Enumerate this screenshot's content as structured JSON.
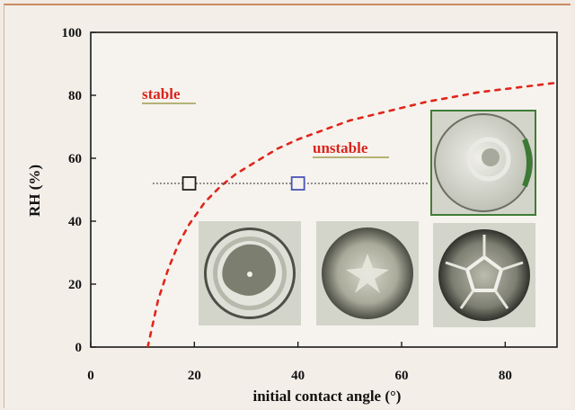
{
  "chart_data": {
    "type": "scatter",
    "title": "",
    "xlabel": "initial contact angle (°)",
    "ylabel": "RH (%)",
    "xlim": [
      0,
      90
    ],
    "ylim": [
      0,
      100
    ],
    "x_ticks": [
      "0",
      "20",
      "40",
      "60",
      "80"
    ],
    "y_ticks": [
      "0",
      "20",
      "40",
      "60",
      "80",
      "100"
    ],
    "grid": false,
    "legend": "none",
    "annotations": {
      "stable": "stable",
      "unstable": "unstable"
    },
    "boundary_curve": {
      "color": "#e0261c",
      "x": [
        11,
        13,
        15,
        17,
        19,
        22,
        25,
        28,
        32,
        36,
        40,
        45,
        50,
        55,
        60,
        65,
        70,
        75,
        80,
        85,
        90
      ],
      "y": [
        0,
        15,
        25,
        33,
        39,
        46,
        51,
        55,
        59,
        63,
        66,
        69,
        72,
        74,
        76,
        78,
        79.5,
        81,
        82,
        83,
        84
      ]
    },
    "rh_line": {
      "y": 52,
      "x_start": 12,
      "x_end": 65,
      "color": "#444444"
    },
    "series": [
      {
        "x": [
          19
        ],
        "y": [
          52
        ],
        "color": "#222222",
        "marker": "open-square"
      },
      {
        "x": [
          40
        ],
        "y": [
          52
        ],
        "color": "#4b54b8",
        "marker": "open-square"
      }
    ],
    "insets": [
      {
        "pattern": "ring-deposit",
        "frame": "none"
      },
      {
        "pattern": "star-crack",
        "frame": "none"
      },
      {
        "pattern": "pentagon-crack",
        "frame": "none"
      },
      {
        "pattern": "sphere-deposit",
        "frame": "#3f7d36"
      }
    ]
  }
}
